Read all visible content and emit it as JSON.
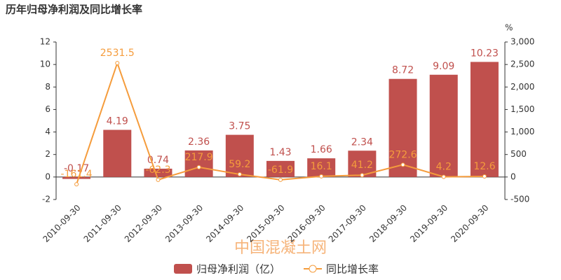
{
  "chart_data": {
    "type": "bar_line",
    "title": "历年归母净利润及同比增长率",
    "y2_unit": "%",
    "watermark": "中国混凝土网",
    "categories": [
      "2010-09-30",
      "2011-09-30",
      "2012-09-30",
      "2013-09-30",
      "2014-09-30",
      "2015-09-30",
      "2016-09-30",
      "2017-09-30",
      "2018-09-30",
      "2019-09-30",
      "2020-09-30"
    ],
    "series": [
      {
        "name": "归母净利润（亿）",
        "type": "bar",
        "color": "#c0504d",
        "values": [
          -0.17,
          4.19,
          0.74,
          2.36,
          3.75,
          1.43,
          1.66,
          2.34,
          8.72,
          9.09,
          10.23
        ]
      },
      {
        "name": "同比增长率",
        "type": "line",
        "axis": "y2",
        "color": "#f59c3c",
        "values": [
          -161.4,
          2531.5,
          -62.3,
          217.9,
          59.2,
          -61.9,
          16.1,
          41.2,
          272.6,
          4.2,
          12.6
        ]
      }
    ],
    "ylim": [
      -2,
      12
    ],
    "yticks": [
      -2,
      0,
      2,
      4,
      6,
      8,
      10,
      12
    ],
    "y2lim": [
      -500,
      3000
    ],
    "y2ticks": [
      -500,
      0,
      500,
      {
        "value": 1000,
        "label": "1,000"
      },
      {
        "value": 1500,
        "label": "1,500"
      },
      {
        "value": 2000,
        "label": "2,000"
      },
      {
        "value": 2500,
        "label": "2,500"
      },
      {
        "value": 3000,
        "label": "3,000"
      }
    ],
    "grid": false
  }
}
